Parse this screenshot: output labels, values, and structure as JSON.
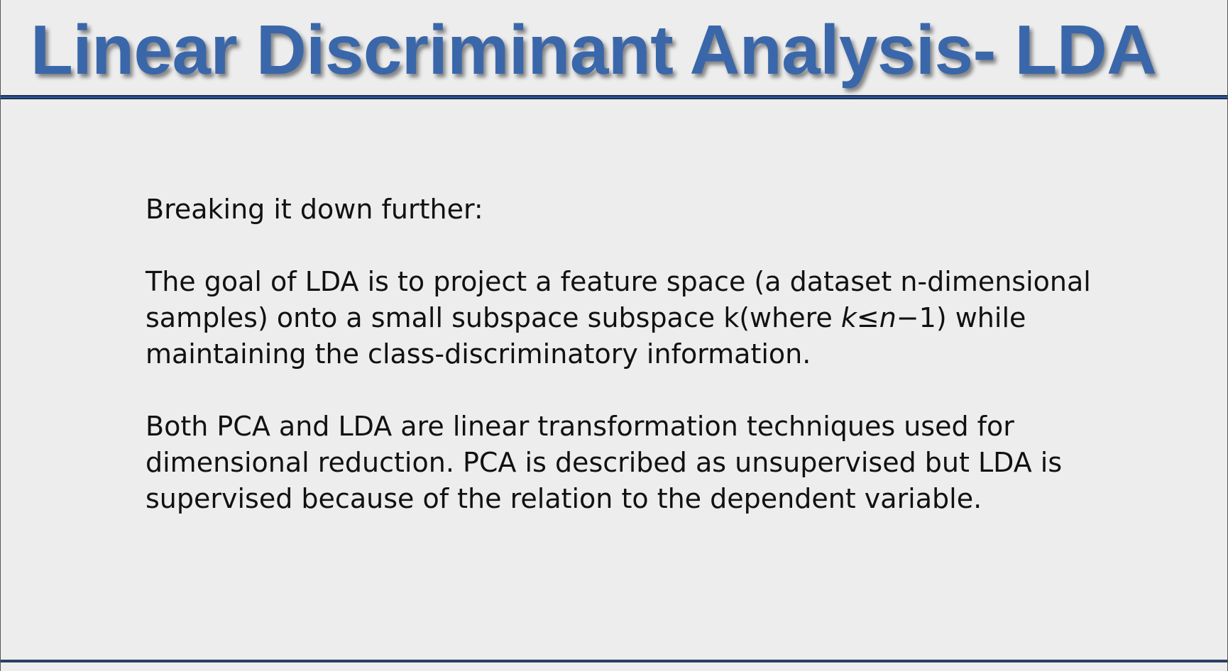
{
  "slide": {
    "title": "Linear Discriminant Analysis- LDA",
    "intro": "Breaking it down further:",
    "paragraph1": {
      "part1": "The goal of LDA is to project a feature space (a dataset n-dimensional samples) onto a small subspace subspace k(where ",
      "k_symbol": "k",
      "leq": "≤",
      "n_symbol": "n",
      "minus_one": "−1",
      "part2": ") while maintaining the class-discriminatory information."
    },
    "paragraph2": "Both PCA and LDA are linear transformation techniques used for dimensional reduction. PCA is described as unsupervised but LDA is supervised because of the relation to the dependent variable."
  },
  "colors": {
    "title": "#3a67aa",
    "rule": "#2f5d9e",
    "background": "#ededed"
  }
}
